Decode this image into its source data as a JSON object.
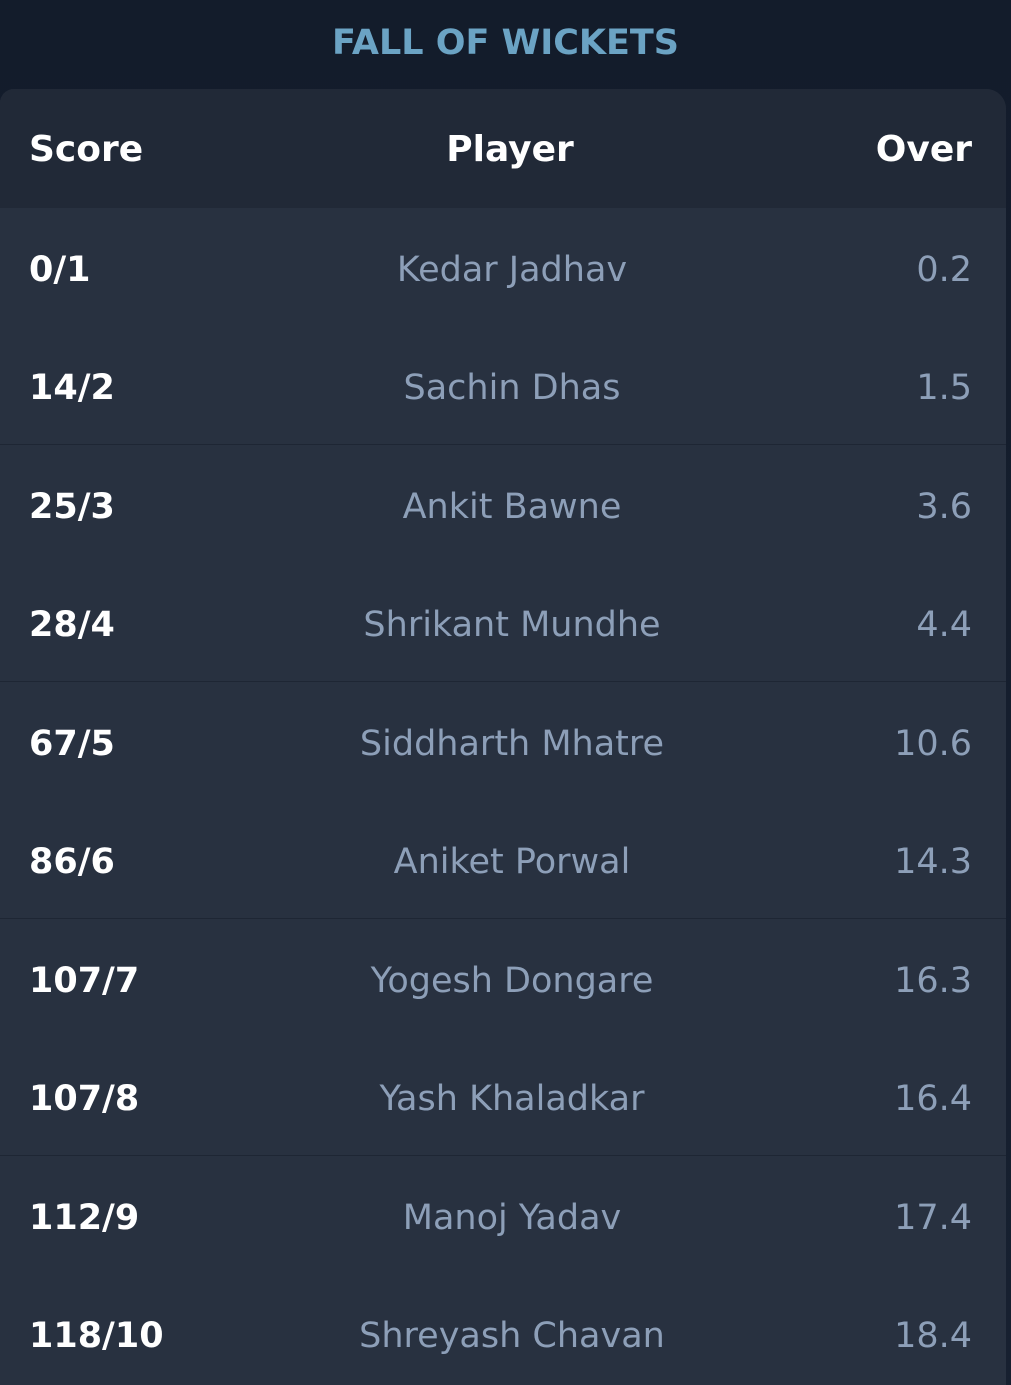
{
  "title": "FALL OF WICKETS",
  "columns": {
    "score": "Score",
    "player": "Player",
    "over": "Over"
  },
  "rows": [
    {
      "score": "0/1",
      "player": "Kedar Jadhav",
      "over": "0.2"
    },
    {
      "score": "14/2",
      "player": "Sachin Dhas",
      "over": "1.5"
    },
    {
      "score": "25/3",
      "player": "Ankit Bawne",
      "over": "3.6"
    },
    {
      "score": "28/4",
      "player": "Shrikant Mundhe",
      "over": "4.4"
    },
    {
      "score": "67/5",
      "player": "Siddharth Mhatre",
      "over": "10.6"
    },
    {
      "score": "86/6",
      "player": "Aniket Porwal",
      "over": "14.3"
    },
    {
      "score": "107/7",
      "player": "Yogesh Dongare",
      "over": "16.3"
    },
    {
      "score": "107/8",
      "player": "Yash Khaladkar",
      "over": "16.4"
    },
    {
      "score": "112/9",
      "player": "Manoj Yadav",
      "over": "17.4"
    },
    {
      "score": "118/10",
      "player": "Shreyash Chavan",
      "over": "18.4"
    }
  ],
  "colors": {
    "title": "#6ba3c4",
    "header_bg": "#212937",
    "panel_bg": "#283140",
    "score_text": "#ffffff",
    "muted_text": "#8d9fb8"
  }
}
